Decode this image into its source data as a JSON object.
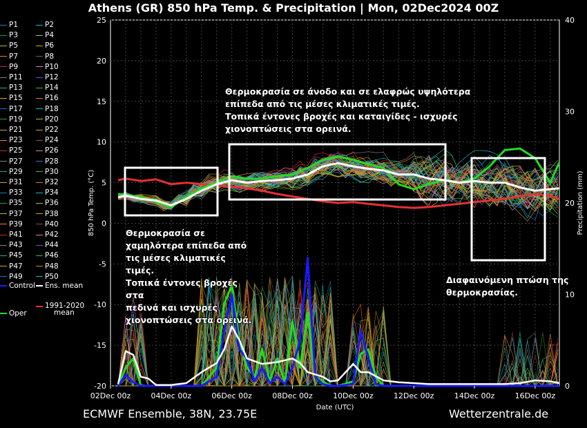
{
  "title": "Athens  (GR)  850 hPa Temp. & Precipitation | Mon, 02Dec2024 00Z",
  "footer": {
    "left": "ECMWF Ensemble, 38N, 23.75E",
    "right": "Wetterzentrale.de"
  },
  "annotations": {
    "top": [
      "Θερμοκρασία σε άνοδο και σε ελαφρώς υψηλότερα",
      "επίπεδα από τις μέσες κλιματικές τιμές.",
      "Τοπικά έντονες βροχές και καταιγίδες - ισχυρές",
      "χιονοπτώσεις στα ορεινά."
    ],
    "left": [
      "Θερμοκρασία σε",
      "χαμηλότερα επίπεδα από",
      "τις μέσες κλιματικές τιμές.",
      "Τοπικά έντονες βροχές στα",
      "πεδινά και ισχυρές",
      "χιονοπτώσεις στα ορεινά."
    ],
    "right": [
      "Διαφαινόμενη πτώση της",
      "θερμοκρασίας."
    ]
  },
  "legend": {
    "members": [
      "P1",
      "P2",
      "P3",
      "P4",
      "P5",
      "P6",
      "P7",
      "P8",
      "P9",
      "P10",
      "P11",
      "P12",
      "P13",
      "P14",
      "P15",
      "P16",
      "P17",
      "P18",
      "P19",
      "P20",
      "P21",
      "P22",
      "P23",
      "P24",
      "P25",
      "P26",
      "P27",
      "P28",
      "P29",
      "P30",
      "P31",
      "P32",
      "P33",
      "P34",
      "P35",
      "P36",
      "P37",
      "P38",
      "P39",
      "P40",
      "P41",
      "P42",
      "P43",
      "P44",
      "P45",
      "P46",
      "P47",
      "P48",
      "P49",
      "P50"
    ],
    "control": "Control",
    "ens_mean": "Ens. mean",
    "oper": "Oper",
    "clim": [
      "1991-2020",
      "mean"
    ]
  },
  "colors": {
    "background": "#000000",
    "ens_mean": "#ffffff",
    "clim_mean": "#e83030",
    "control": "#1a1aff",
    "oper": "#22dd22",
    "member_palette": [
      "#1f77b4",
      "#17becf",
      "#2ca02c",
      "#9acd32",
      "#bcbd22",
      "#d4a017",
      "#ff7f0e",
      "#8c564b",
      "#d62728",
      "#e377c2",
      "#7f7f7f",
      "#6a5acd",
      "#20b2aa",
      "#3cb371",
      "#daa520",
      "#cd853f"
    ]
  },
  "chart_data": {
    "type": "line",
    "xlabel": "Date (UTC)",
    "ylabel_left": "850 hPa Temp. (°C)",
    "ylabel_right": "Precipitation (mm)",
    "ylim_left": [
      -20,
      25
    ],
    "ylim_right": [
      0,
      40
    ],
    "yticks_left": [
      -20,
      -15,
      -10,
      -5,
      0,
      5,
      10,
      15,
      20,
      25
    ],
    "yticks_right": [
      0,
      10,
      20,
      30,
      40
    ],
    "x_tick_labels": [
      "02Dec 00z",
      "04Dec 00z",
      "06Dec 00z",
      "08Dec 00z",
      "10Dec 00z",
      "12Dec 00z",
      "14Dec 00z",
      "16Dec 00z"
    ],
    "x_tick_days": [
      0,
      2,
      4,
      6,
      8,
      10,
      12,
      14
    ],
    "x_range_days": [
      0,
      14.8
    ],
    "grid": true,
    "series": [
      {
        "name": "Ens. mean",
        "axis": "left",
        "x": [
          0.25,
          0.5,
          1,
          1.5,
          2,
          2.5,
          3,
          3.5,
          4,
          4.5,
          5,
          5.5,
          6,
          6.5,
          7,
          7.5,
          8,
          8.5,
          9,
          9.5,
          10,
          10.5,
          11,
          11.5,
          12,
          12.5,
          13,
          13.5,
          14,
          14.5,
          14.8
        ],
        "y": [
          3.2,
          3.4,
          3.0,
          2.8,
          2.2,
          3.0,
          4.0,
          4.8,
          5.3,
          5.0,
          5.2,
          5.3,
          5.5,
          6.0,
          7.0,
          7.4,
          7.0,
          6.7,
          6.5,
          6.0,
          6.0,
          5.5,
          5.3,
          5.0,
          5.2,
          5.0,
          5.0,
          4.4,
          4.0,
          4.2,
          4.3
        ]
      },
      {
        "name": "1991-2020 mean",
        "axis": "left",
        "x": [
          0.25,
          0.5,
          1,
          1.5,
          2,
          2.5,
          3,
          3.5,
          4,
          4.5,
          5,
          5.5,
          6,
          6.5,
          7,
          7.5,
          8,
          8.5,
          9,
          9.5,
          10,
          10.5,
          11,
          11.5,
          12,
          12.5,
          13,
          13.5,
          14,
          14.5,
          14.8
        ],
        "y": [
          5.3,
          5.5,
          5.2,
          5.4,
          4.8,
          5.0,
          4.8,
          4.6,
          4.5,
          4.3,
          4.0,
          3.6,
          3.3,
          3.0,
          2.7,
          2.5,
          2.6,
          2.4,
          2.2,
          2.0,
          1.9,
          2.0,
          2.2,
          2.4,
          2.6,
          2.8,
          3.0,
          3.3,
          3.6,
          3.4,
          3.0
        ]
      },
      {
        "name": "Oper",
        "axis": "left",
        "x": [
          0.25,
          0.5,
          1,
          1.5,
          2,
          2.5,
          3,
          3.5,
          4,
          4.5,
          5,
          5.5,
          6,
          6.5,
          7,
          7.5,
          8,
          8.5,
          9,
          9.5,
          10,
          10.5,
          11,
          11.5,
          12,
          12.5,
          13,
          13.5,
          14,
          14.5,
          14.8
        ],
        "y": [
          3.6,
          3.5,
          3.2,
          2.6,
          2.0,
          3.2,
          4.3,
          5.0,
          5.8,
          5.5,
          5.5,
          5.8,
          6.0,
          6.8,
          7.8,
          8.2,
          7.8,
          7.3,
          6.8,
          4.8,
          4.2,
          4.8,
          5.3,
          5.0,
          5.5,
          7.0,
          9.0,
          9.2,
          8.0,
          5.0,
          7.5
        ]
      },
      {
        "name": "Ens. mean precipitation",
        "axis": "right",
        "x": [
          0.25,
          0.5,
          0.75,
          1,
          1.25,
          1.5,
          2,
          2.5,
          3,
          3.5,
          3.75,
          4,
          4.25,
          4.5,
          5,
          5.5,
          6,
          6.25,
          6.5,
          7,
          7.25,
          7.5,
          8,
          8.25,
          8.5,
          9,
          9.5,
          10,
          10.5,
          11,
          11.5,
          12,
          12.5,
          13,
          13.5,
          14,
          14.5,
          14.8
        ],
        "y": [
          0.2,
          3.8,
          3.4,
          1.0,
          0.8,
          0.1,
          0.1,
          0.3,
          1.5,
          2.5,
          4.0,
          6.5,
          5.0,
          3.0,
          2.4,
          2.6,
          3.0,
          2.5,
          1.5,
          1.0,
          0.5,
          0.6,
          2.4,
          1.5,
          1.5,
          0.6,
          0.4,
          0.3,
          0.2,
          0.2,
          0.2,
          0.2,
          0.2,
          0.2,
          0.3,
          0.6,
          0.5,
          0.3
        ]
      },
      {
        "name": "Control precipitation",
        "axis": "right",
        "x": [
          0.25,
          0.5,
          0.75,
          1,
          1.5,
          2,
          3,
          3.5,
          3.75,
          4,
          4.25,
          4.5,
          4.75,
          5,
          5.25,
          5.5,
          5.75,
          6,
          6.25,
          6.5,
          6.75,
          7,
          7.25,
          7.5,
          8,
          8.25,
          8.5,
          8.75,
          9,
          10,
          11,
          12,
          13,
          14,
          14.8
        ],
        "y": [
          0.0,
          1.2,
          0.4,
          0.0,
          0.0,
          0.0,
          0.0,
          1.0,
          6.0,
          10.0,
          4.0,
          3.0,
          0.5,
          2.0,
          0.3,
          1.0,
          0.2,
          2.0,
          5.0,
          14.0,
          1.0,
          0.2,
          0.0,
          0.0,
          0.2,
          6.0,
          3.0,
          0.2,
          0.0,
          0.0,
          0.0,
          0.0,
          0.0,
          0.0,
          0.0
        ]
      },
      {
        "name": "Oper precipitation",
        "axis": "right",
        "x": [
          0.25,
          0.5,
          0.75,
          1,
          1.5,
          2,
          3,
          3.5,
          3.75,
          4,
          4.25,
          4.5,
          4.75,
          5,
          5.25,
          5.5,
          5.75,
          6,
          6.25,
          6.5,
          6.75,
          7,
          7.25,
          7.5,
          8,
          8.25,
          8.5,
          8.75,
          9,
          10,
          11,
          12,
          13,
          14,
          14.8
        ],
        "y": [
          0.0,
          2.0,
          3.0,
          0.0,
          0.0,
          0.0,
          0.0,
          2.0,
          9.0,
          11.0,
          5.0,
          2.0,
          1.0,
          4.0,
          0.5,
          3.0,
          0.3,
          7.0,
          2.0,
          8.0,
          1.0,
          0.5,
          0.0,
          0.0,
          0.5,
          3.5,
          4.0,
          1.0,
          0.0,
          0.0,
          0.0,
          0.0,
          0.0,
          0.0,
          0.0
        ]
      }
    ]
  }
}
